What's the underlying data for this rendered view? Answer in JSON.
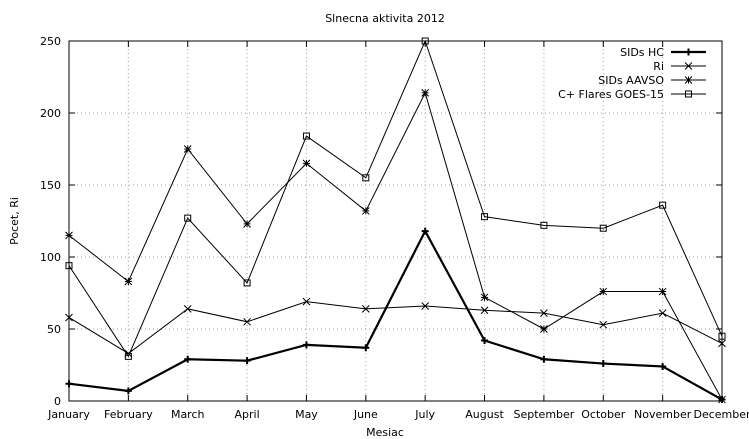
{
  "chart_data": {
    "type": "line",
    "title": "Slnecna aktivita 2012",
    "xlabel": "Mesiac",
    "ylabel": "Pocet, Ri",
    "categories": [
      "January",
      "February",
      "March",
      "April",
      "May",
      "June",
      "July",
      "August",
      "September",
      "October",
      "November",
      "December"
    ],
    "ylim": [
      0,
      250
    ],
    "yticks": [
      0,
      50,
      100,
      150,
      200,
      250
    ],
    "grid": true,
    "legend_position": "top-right",
    "series": [
      {
        "name": "SIDs HC",
        "marker": "plus",
        "bold": true,
        "color": "#000000",
        "values": [
          12,
          7,
          29,
          28,
          39,
          37,
          118,
          42,
          29,
          26,
          24,
          1
        ]
      },
      {
        "name": "Ri",
        "marker": "cross",
        "bold": false,
        "color": "#000000",
        "values": [
          58,
          33,
          64,
          55,
          69,
          64,
          66,
          63,
          61,
          53,
          61,
          40
        ]
      },
      {
        "name": "SIDs AAVSO",
        "marker": "star",
        "bold": false,
        "color": "#000000",
        "values": [
          115,
          83,
          175,
          123,
          165,
          132,
          214,
          72,
          50,
          76,
          76,
          1
        ]
      },
      {
        "name": "C+ Flares GOES-15",
        "marker": "square",
        "bold": false,
        "color": "#000000",
        "values": [
          94,
          31,
          127,
          82,
          184,
          155,
          250,
          128,
          122,
          120,
          136,
          45
        ]
      }
    ]
  }
}
